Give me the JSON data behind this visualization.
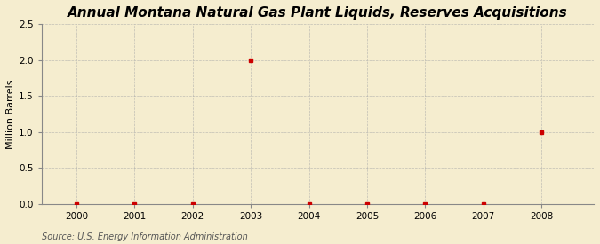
{
  "title": "Annual Montana Natural Gas Plant Liquids, Reserves Acquisitions",
  "ylabel": "Million Barrels",
  "source": "Source: U.S. Energy Information Administration",
  "x_years": [
    2000,
    2001,
    2002,
    2003,
    2004,
    2005,
    2006,
    2007,
    2008
  ],
  "y_values": [
    0.0,
    0.0,
    0.0,
    2.0,
    0.0,
    0.0,
    0.0,
    0.0,
    1.0
  ],
  "xlim": [
    1999.4,
    2008.9
  ],
  "ylim": [
    0.0,
    2.5
  ],
  "yticks": [
    0.0,
    0.5,
    1.0,
    1.5,
    2.0,
    2.5
  ],
  "xticks": [
    2000,
    2001,
    2002,
    2003,
    2004,
    2005,
    2006,
    2007,
    2008
  ],
  "marker_color": "#cc0000",
  "marker": "s",
  "marker_size": 3,
  "background_color": "#f5edcf",
  "grid_color": "#aaaaaa",
  "title_fontsize": 11,
  "label_fontsize": 8,
  "tick_fontsize": 7.5,
  "source_fontsize": 7
}
